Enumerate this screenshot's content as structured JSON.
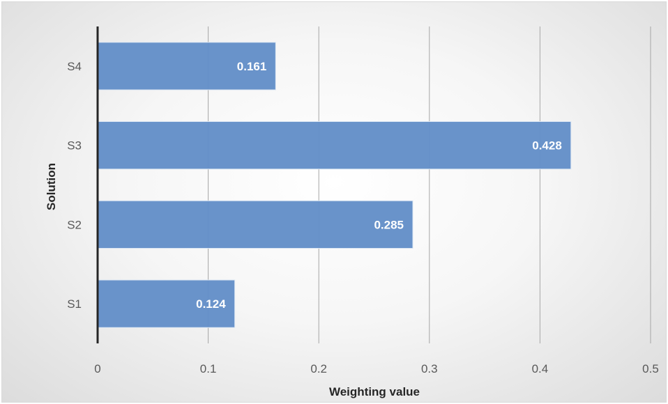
{
  "chart_data": {
    "type": "bar",
    "orientation": "horizontal",
    "categories": [
      "S1",
      "S2",
      "S3",
      "S4"
    ],
    "values": [
      0.124,
      0.285,
      0.428,
      0.161
    ],
    "data_labels": [
      "0.124",
      "0.285",
      "0.428",
      "0.161"
    ],
    "xlabel": "Weighting value",
    "ylabel": "Solution",
    "xlim": [
      0,
      0.5
    ],
    "x_ticks": [
      "0",
      "0.1",
      "0.2",
      "0.3",
      "0.4",
      "0.5"
    ],
    "grid": "vertical",
    "bar_color": "#6490c8",
    "legend": "none"
  }
}
